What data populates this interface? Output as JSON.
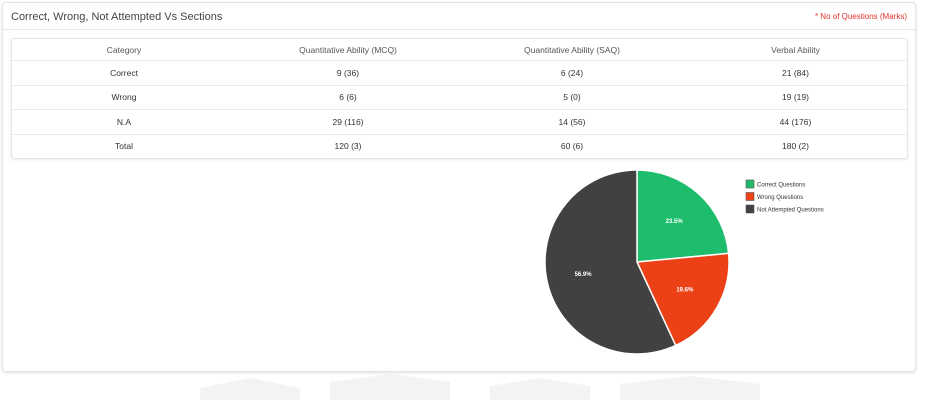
{
  "card": {
    "title": "Correct, Wrong, Not Attempted Vs Sections",
    "note": "* No of Questions (Marks)"
  },
  "table": {
    "headers": [
      "Category",
      "Quantitative Ability (MCQ)",
      "Quantitative Ability (SAQ)",
      "Verbal Ability"
    ],
    "rows": [
      [
        "Correct",
        "9 (36)",
        "6 (24)",
        "21 (84)"
      ],
      [
        "Wrong",
        "6 (6)",
        "5 (0)",
        "19 (19)"
      ],
      [
        "N.A",
        "29 (116)",
        "14 (56)",
        "44 (176)"
      ],
      [
        "Total",
        "120 (3)",
        "60 (6)",
        "180 (2)"
      ]
    ]
  },
  "chart_data": {
    "type": "pie",
    "title": "",
    "labels": [
      "Correct Questions",
      "Wrong Questions",
      "Not Attempted Questions"
    ],
    "values": [
      23.5,
      19.6,
      56.9
    ],
    "value_labels": [
      "23.5%",
      "19.6%",
      "56.9%"
    ],
    "colors": [
      "#1ebd6d",
      "#ec4116",
      "#414141"
    ],
    "legend": "top-right"
  }
}
